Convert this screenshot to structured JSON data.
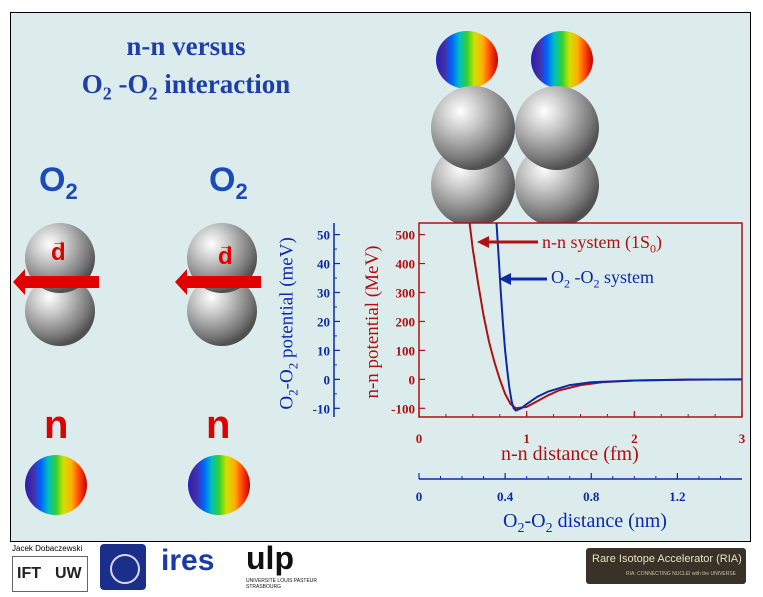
{
  "title": {
    "line1": "n-n versus",
    "line2_a": "O",
    "line2_sub1": "2",
    "line2_b": " -O",
    "line2_sub2": "2",
    "line2_c": " interaction"
  },
  "molecules": [
    {
      "label": "O",
      "sub": "2",
      "vector": "d",
      "particle": "n"
    },
    {
      "label": "O",
      "sub": "2",
      "vector": "d",
      "particle": "n"
    }
  ],
  "chart_data": {
    "type": "line",
    "x_axis": {
      "label": "n-n distance (fm)",
      "range": [
        0,
        3
      ],
      "ticks": [
        "0",
        "1",
        "2",
        "3"
      ]
    },
    "x2_axis": {
      "label_a": "O",
      "label_sub1": "2",
      "label_b": "-O",
      "label_sub2": "2",
      "label_c": " distance (nm)",
      "range": [
        0,
        1.5
      ],
      "ticks": [
        "0",
        "0.4",
        "0.8",
        "1.2"
      ]
    },
    "y_axis": {
      "label": "n-n potential (MeV)",
      "range": [
        -130,
        540
      ],
      "ticks": [
        "500",
        "400",
        "300",
        "200",
        "100",
        "0",
        "-100"
      ]
    },
    "y2_axis": {
      "label_a": "O",
      "label_sub1": "2",
      "label_b": "-O",
      "label_sub2": "2",
      "label_c": " potential (meV)",
      "range": [
        -13,
        54
      ],
      "ticks": [
        "50",
        "40",
        "30",
        "20",
        "10",
        "0",
        "-10"
      ]
    },
    "series": [
      {
        "name": "n-n system (1S0)",
        "legend_a": "n-n system (1S",
        "legend_sub": "0",
        "legend_b": ")",
        "color": "#b01010",
        "x": [
          0.47,
          0.5,
          0.55,
          0.6,
          0.65,
          0.7,
          0.75,
          0.8,
          0.85,
          0.9,
          1.0,
          1.1,
          1.2,
          1.3,
          1.5,
          1.7,
          2.0,
          2.5,
          3.0
        ],
        "y": [
          540,
          450,
          330,
          220,
          130,
          60,
          0,
          -50,
          -85,
          -100,
          -95,
          -75,
          -55,
          -38,
          -20,
          -10,
          -4,
          -1,
          0
        ]
      },
      {
        "name": "O2-O2 system",
        "legend_a": "O",
        "legend_sub1": "2",
        "legend_b": " -O",
        "legend_sub2": "2",
        "legend_c": "  system",
        "color": "#0a2aa8",
        "x": [
          0.72,
          0.74,
          0.76,
          0.78,
          0.8,
          0.82,
          0.84,
          0.86,
          0.88,
          0.9,
          0.95,
          1.0,
          1.1,
          1.2,
          1.4,
          1.6,
          2.0,
          2.5,
          3.0
        ],
        "y": [
          540,
          420,
          300,
          190,
          100,
          30,
          -30,
          -75,
          -100,
          -108,
          -100,
          -85,
          -60,
          -42,
          -20,
          -10,
          -4,
          -1,
          0
        ]
      }
    ]
  },
  "logos": {
    "author": "Jacek Dobaczewski",
    "ift": "IFT",
    "uw": "UW",
    "ires": "ires",
    "ulp": "ulp",
    "ulp_small": "UNIVERSITE LOUIS PASTEUR STRASBOURG",
    "ria": "Rare Isotope Accelerator (RIA)",
    "ria_small": "RIA: CONNECTING NUCLEI with the UNIVERSE"
  },
  "colors": {
    "slide_bg": "#dcecec",
    "title": "#1f3fa8",
    "accent_red": "#e00000"
  }
}
